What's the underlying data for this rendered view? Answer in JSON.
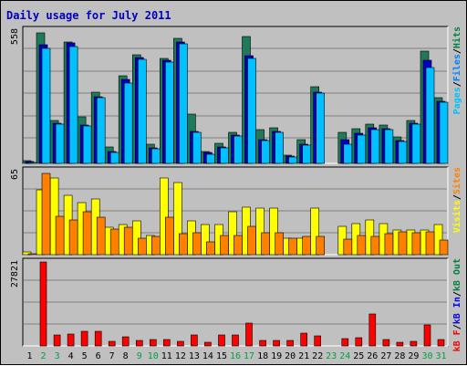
{
  "chart_data": {
    "type": "bar",
    "title": "Daily usage for July 2011",
    "categories": [
      "1",
      "2",
      "3",
      "4",
      "5",
      "6",
      "7",
      "8",
      "9",
      "10",
      "11",
      "12",
      "13",
      "14",
      "15",
      "16",
      "17",
      "18",
      "19",
      "20",
      "21",
      "22",
      "23",
      "24",
      "25",
      "26",
      "27",
      "28",
      "29",
      "30",
      "31"
    ],
    "weekend_days": [
      2,
      3,
      9,
      10,
      16,
      17,
      23,
      24,
      30,
      31
    ],
    "panels": [
      {
        "max_label": "558",
        "ylim": [
          0,
          558
        ],
        "legend": [
          "Pages",
          "/",
          "Files",
          "/",
          "Hits"
        ],
        "legend_colors": [
          "#00c0ff",
          "#000000",
          "#0080ff",
          "#000000",
          "#008040"
        ],
        "series": [
          {
            "name": "Hits",
            "color": "#1f7a5a",
            "values": [
              12,
              547,
              180,
              510,
              195,
              300,
              70,
              365,
              455,
              80,
              440,
              525,
              205,
              50,
              85,
              130,
              530,
              140,
              150,
              35,
              100,
              320,
              0,
              130,
              145,
              165,
              160,
              110,
              180,
              470,
              275
            ]
          },
          {
            "name": "Files",
            "color": "#0000c8",
            "values": [
              8,
              495,
              170,
              505,
              160,
              280,
              50,
              350,
              445,
              65,
              430,
              510,
              135,
              45,
              70,
              120,
              450,
              100,
              135,
              30,
              80,
              300,
              0,
              100,
              125,
              150,
              145,
              95,
              170,
              430,
              260
            ]
          },
          {
            "name": "Pages",
            "color": "#00c0ff",
            "values": [
              5,
              480,
              165,
              490,
              155,
              275,
              45,
              335,
              435,
              60,
              425,
              500,
              130,
              40,
              65,
              115,
              440,
              95,
              130,
              28,
              75,
              295,
              0,
              80,
              120,
              140,
              140,
              90,
              165,
              400,
              255
            ]
          }
        ]
      },
      {
        "max_label": "65",
        "ylim": [
          0,
          65
        ],
        "legend": [
          "Visits",
          "/",
          "Sites"
        ],
        "legend_colors": [
          "#ffff00",
          "#000000",
          "#ff8000"
        ],
        "series": [
          {
            "name": "Visits",
            "color": "#ffff00",
            "values": [
              2,
              50,
              59,
              46,
              40,
              43,
              21,
              23,
              26,
              15,
              59,
              56,
              26,
              23,
              23,
              33,
              37,
              36,
              36,
              13,
              13,
              36,
              0,
              22,
              24,
              27,
              24,
              19,
              19,
              19,
              23
            ]
          },
          {
            "name": "Sites",
            "color": "#ff8000",
            "values": [
              1,
              63,
              30,
              27,
              33,
              29,
              20,
              21,
              13,
              14,
              29,
              16,
              17,
              10,
              15,
              15,
              22,
              17,
              17,
              13,
              14,
              14,
              0,
              12,
              15,
              14,
              16,
              18,
              17,
              18,
              11
            ]
          }
        ]
      },
      {
        "max_label": "27821",
        "ylim": [
          0,
          27821
        ],
        "legend": [
          "kB F",
          "/",
          "kB In",
          "/",
          "kB Out"
        ],
        "legend_colors": [
          "#ff0000",
          "#000000",
          "#0000ff",
          "#000000",
          "#008040"
        ],
        "series": [
          {
            "name": "kB F",
            "color": "#ff0000",
            "values": [
              0,
              27821,
              3550,
              3850,
              4880,
              4750,
              1490,
              3110,
              1720,
              2140,
              2260,
              1590,
              3780,
              1090,
              3510,
              3520,
              7690,
              1790,
              1690,
              1850,
              4370,
              3300,
              0,
              2560,
              2680,
              10500,
              2150,
              1270,
              1460,
              6850,
              1970
            ]
          }
        ]
      }
    ]
  }
}
